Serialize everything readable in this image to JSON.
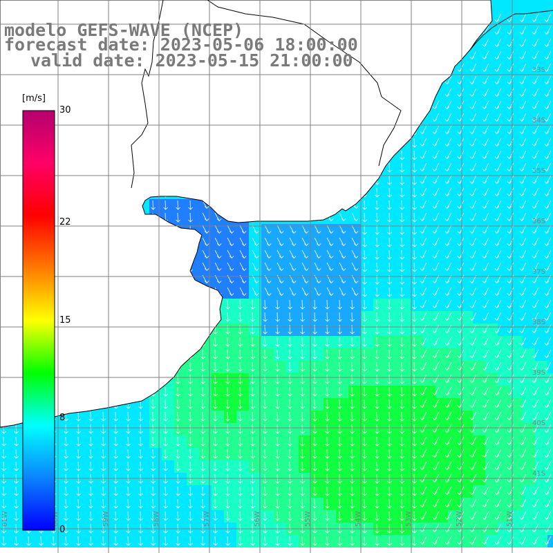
{
  "header": {
    "model": "modelo GEFS-WAVE (NCEP)",
    "forecast": "forecast date: 2023-05-06 18:00:00",
    "valid": "valid date: 2023-05-15 21:00:00"
  },
  "colorbar": {
    "unit": "[m/s]",
    "ticks": [
      {
        "value": 30,
        "label": "30"
      },
      {
        "value": 22,
        "label": "22"
      },
      {
        "value": 15,
        "label": "15"
      },
      {
        "value": 8,
        "label": "8"
      },
      {
        "value": 0,
        "label": "0"
      }
    ],
    "colors": [
      "#0000ff",
      "#0a84ff",
      "#00ffff",
      "#00ff00",
      "#ffff00",
      "#ff7a00",
      "#ff0000",
      "#ff0066",
      "#b4006e"
    ]
  },
  "grid": {
    "lon_labels": [
      "61W",
      "60W",
      "59W",
      "58W",
      "57W",
      "56W",
      "55W",
      "54W",
      "53W",
      "52W",
      "51W"
    ],
    "lat_labels": [
      "33S",
      "34S",
      "35S",
      "36S",
      "37S",
      "38S",
      "39S",
      "40S",
      "41S"
    ]
  },
  "colors": {
    "ocean_default": "#00ffff",
    "land": "#ffffff",
    "grid": "#7f7f7f",
    "arrow": "#ffffff",
    "text_header": "#7a7a7a"
  }
}
